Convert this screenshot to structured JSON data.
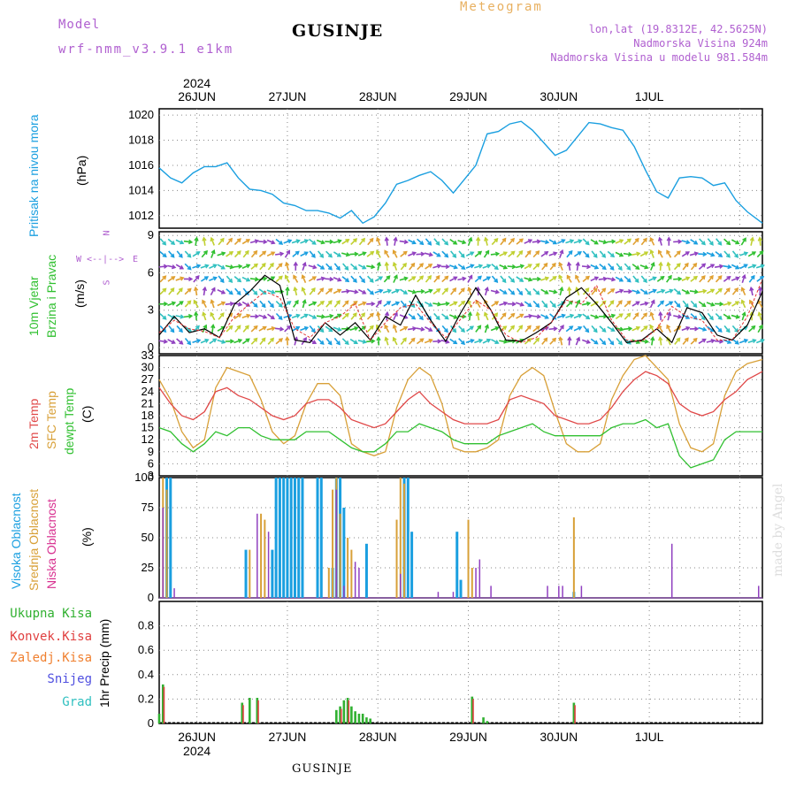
{
  "header": {
    "model_label": "Model",
    "model_name": "wrf-nmm_v3.9.1 e1km",
    "station": "GUSINJE",
    "meteogram": "Meteogram",
    "lonlat": "lon,lat (19.8312E, 42.5625N)",
    "altitude": "Nadmorska Visina 924m",
    "model_altitude": "Nadmorska Visina u modelu 981.584m",
    "watermark": "made by Angel",
    "footer_station": "GUSINJE"
  },
  "colors": {
    "pressure": "#1a9fe0",
    "temp2m": "#e04848",
    "sfc": "#d8a038",
    "dew": "#30c030",
    "high_cloud": "#1a9fe0",
    "mid_cloud": "#d8a038",
    "low_cloud": "#9040c0",
    "precip_total": "#30b030",
    "precip_conv": "#e04040",
    "header_purple": "#b060d0",
    "header_orange": "#e8b060"
  },
  "chart_data": [
    {
      "type": "line",
      "panel": "pressure",
      "ylabel_main": "Pritisak na nivou mora",
      "ylabel_unit": "(hPa)",
      "yticks": [
        "1012",
        "1014",
        "1016",
        "1018",
        "1020"
      ],
      "ylim": [
        1011,
        1020.5
      ],
      "x_hours": [
        0,
        3,
        6,
        9,
        12,
        15,
        18,
        21,
        24,
        27,
        30,
        33,
        36,
        39,
        42,
        45,
        48,
        51,
        54,
        57,
        60,
        63,
        66,
        69,
        72,
        75,
        78,
        81,
        84,
        87,
        90,
        93,
        96,
        99,
        102,
        105,
        108,
        111,
        114,
        117,
        120,
        123,
        126,
        129,
        132,
        135,
        138,
        141,
        144,
        147,
        150,
        153,
        156,
        160
      ],
      "series": [
        {
          "name": "Pritisak na nivou mora",
          "values": [
            1015.8,
            1015.0,
            1014.6,
            1015.4,
            1015.9,
            1015.9,
            1016.2,
            1015.0,
            1014.1,
            1014.0,
            1013.7,
            1013.0,
            1012.8,
            1012.4,
            1012.4,
            1012.2,
            1011.8,
            1012.4,
            1011.4,
            1011.9,
            1013.0,
            1014.5,
            1014.8,
            1015.2,
            1015.5,
            1014.8,
            1013.8,
            1014.9,
            1016.0,
            1018.5,
            1018.7,
            1019.3,
            1019.5,
            1018.8,
            1017.8,
            1016.8,
            1017.2,
            1018.3,
            1019.4,
            1019.3,
            1019.0,
            1018.8,
            1017.5,
            1015.6,
            1013.9,
            1013.4,
            1015.0,
            1015.1,
            1015.0,
            1014.4,
            1014.6,
            1013.2,
            1012.3,
            1011.4
          ]
        }
      ]
    },
    {
      "type": "line",
      "panel": "wind",
      "ylabel_main": "10m Vjetar",
      "ylabel_sub": "Brzina i Pravac",
      "ylabel_unit": "(m/s)",
      "compass": {
        "n": "N",
        "s": "S",
        "w": "W",
        "e": "E",
        "arrow": "<--|-->"
      },
      "yticks": [
        "0",
        "3",
        "6",
        "9"
      ],
      "ylim": [
        -0.5,
        9.3
      ],
      "x_hours": [
        0,
        4,
        8,
        12,
        16,
        20,
        24,
        28,
        32,
        36,
        40,
        44,
        48,
        52,
        56,
        60,
        64,
        68,
        72,
        76,
        80,
        84,
        88,
        92,
        96,
        100,
        104,
        108,
        112,
        116,
        120,
        124,
        128,
        132,
        136,
        140,
        144,
        148,
        152,
        156,
        160
      ],
      "series": [
        {
          "name": "speed",
          "values": [
            1.0,
            2.5,
            1.2,
            1.5,
            0.8,
            3.5,
            4.5,
            5.8,
            5.0,
            0.6,
            0.4,
            2.0,
            1.0,
            2.0,
            0.6,
            2.5,
            1.8,
            4.2,
            2.2,
            0.5,
            2.8,
            4.8,
            3.0,
            0.6,
            0.5,
            1.2,
            2.0,
            4.0,
            4.8,
            3.5,
            2.0,
            0.4,
            0.6,
            1.5,
            0.4,
            3.2,
            2.8,
            1.0,
            0.6,
            1.8,
            4.5
          ]
        },
        {
          "name": "gust",
          "values": [
            1.2,
            2.2,
            1.5,
            1.3,
            0.8,
            2.5,
            3.5,
            4.5,
            4.0,
            1.5,
            0.8,
            2.0,
            2.5,
            3.5,
            0.6,
            2.0,
            3.2,
            3.5,
            2.0,
            0.8,
            2.3,
            3.8,
            3.0,
            1.0,
            0.4,
            0.8,
            2.0,
            3.8,
            3.5,
            5.0,
            2.2,
            0.6,
            0.5,
            1.5,
            3.3,
            2.5,
            2.2,
            0.6,
            0.6,
            2.5,
            5.5
          ]
        }
      ]
    },
    {
      "type": "line",
      "panel": "temperature",
      "ylabel_main": "2m Temp",
      "ylabel_sub": "SFC Temp",
      "ylabel_sub2": "dewpt Temp",
      "ylabel_unit": "(C)",
      "yticks": [
        "3",
        "6",
        "9",
        "12",
        "15",
        "18",
        "21",
        "24",
        "27",
        "30",
        "33"
      ],
      "ylim": [
        3,
        33
      ],
      "x_hours": [
        0,
        3,
        6,
        9,
        12,
        15,
        18,
        21,
        24,
        27,
        30,
        33,
        36,
        39,
        42,
        45,
        48,
        51,
        54,
        57,
        60,
        63,
        66,
        69,
        72,
        75,
        78,
        81,
        84,
        87,
        90,
        93,
        96,
        99,
        102,
        105,
        108,
        111,
        114,
        117,
        120,
        123,
        126,
        129,
        132,
        135,
        138,
        141,
        144,
        147,
        150,
        153,
        156,
        160
      ],
      "series": [
        {
          "name": "2m Temp",
          "values": [
            25,
            21,
            18,
            17,
            19,
            24,
            25,
            23,
            22,
            20,
            18,
            17,
            18,
            21,
            22,
            22,
            20,
            17,
            16,
            15,
            16,
            19,
            22,
            24,
            21,
            19,
            17,
            16,
            16,
            16,
            17,
            22,
            23,
            22,
            21,
            18,
            17,
            16,
            16,
            17,
            20,
            24,
            27,
            29,
            28,
            26,
            21,
            19,
            18,
            19,
            22,
            24,
            27,
            29
          ]
        },
        {
          "name": "SFC Temp",
          "values": [
            27,
            22,
            14,
            10,
            12,
            25,
            30,
            29,
            28,
            22,
            14,
            11,
            13,
            21,
            26,
            26,
            23,
            11,
            9,
            8,
            9,
            20,
            27,
            30,
            28,
            21,
            10,
            9,
            9,
            10,
            12,
            23,
            28,
            30,
            28,
            19,
            11,
            9,
            9,
            11,
            22,
            28,
            32,
            33,
            30,
            27,
            16,
            10,
            9,
            11,
            23,
            29,
            31,
            32
          ]
        },
        {
          "name": "dewpt Temp",
          "values": [
            15,
            14,
            11,
            9,
            11,
            14,
            13,
            15,
            15,
            13,
            12,
            12,
            12,
            14,
            14,
            14,
            12,
            10,
            9,
            9,
            11,
            14,
            14,
            16,
            15,
            14,
            12,
            11,
            11,
            11,
            13,
            14,
            15,
            16,
            14,
            13,
            13,
            13,
            13,
            13,
            15,
            16,
            16,
            17,
            15,
            16,
            8,
            5,
            6,
            7,
            12,
            14,
            14,
            14
          ]
        }
      ]
    },
    {
      "type": "bar",
      "panel": "cloud",
      "ylabel_main": "Visoka Oblacnost",
      "ylabel_sub": "Srednja Oblacnost",
      "ylabel_sub2": "Niska Oblacnost",
      "ylabel_unit": "(%)",
      "yticks": [
        "0",
        "25",
        "50",
        "75",
        "100"
      ],
      "ylim": [
        0,
        100
      ],
      "series": [
        {
          "name": "Visoka Oblacnost",
          "points": [
            [
              2,
              100
            ],
            [
              3,
              100
            ],
            [
              23,
              40
            ],
            [
              30,
              40
            ],
            [
              31,
              100
            ],
            [
              32,
              100
            ],
            [
              33,
              100
            ],
            [
              34,
              100
            ],
            [
              35,
              100
            ],
            [
              36,
              100
            ],
            [
              37,
              100
            ],
            [
              38,
              100
            ],
            [
              42,
              100
            ],
            [
              43,
              100
            ],
            [
              46,
              25
            ],
            [
              47,
              100
            ],
            [
              48,
              100
            ],
            [
              49,
              75
            ],
            [
              55,
              45
            ],
            [
              65,
              100
            ],
            [
              66,
              100
            ],
            [
              67,
              55
            ],
            [
              79,
              55
            ],
            [
              80,
              15
            ],
            [
              110,
              5
            ]
          ]
        },
        {
          "name": "Srednja Oblacnost",
          "points": [
            [
              1,
              100
            ],
            [
              2,
              90
            ],
            [
              24,
              40
            ],
            [
              27,
              70
            ],
            [
              28,
              65
            ],
            [
              45,
              25
            ],
            [
              46,
              90
            ],
            [
              47,
              100
            ],
            [
              48,
              70
            ],
            [
              50,
              50
            ],
            [
              51,
              40
            ],
            [
              63,
              65
            ],
            [
              64,
              100
            ],
            [
              65,
              95
            ],
            [
              82,
              65
            ],
            [
              83,
              25
            ],
            [
              110,
              67
            ]
          ]
        },
        {
          "name": "Niska Oblacnost",
          "points": [
            [
              1,
              75
            ],
            [
              4,
              8
            ],
            [
              26,
              70
            ],
            [
              29,
              55
            ],
            [
              47,
              90
            ],
            [
              49,
              10
            ],
            [
              52,
              30
            ],
            [
              53,
              25
            ],
            [
              64,
              20
            ],
            [
              74,
              5
            ],
            [
              78,
              5
            ],
            [
              84,
              25
            ],
            [
              85,
              32
            ],
            [
              88,
              10
            ],
            [
              103,
              10
            ],
            [
              106,
              10
            ],
            [
              107,
              10
            ],
            [
              112,
              10
            ],
            [
              136,
              45
            ],
            [
              159,
              10
            ]
          ]
        }
      ]
    },
    {
      "type": "bar",
      "panel": "precip",
      "legend": [
        "Ukupna Kisa",
        "Konvek.Kisa",
        "Zaledj.Kisa",
        "Snijeg",
        "Grad"
      ],
      "ylabel_unit": "1hr Precip (mm)",
      "yticks": [
        "0",
        "0.2",
        "0.4",
        "0.6",
        "0.8"
      ],
      "ylim": [
        0,
        1.0
      ],
      "series": [
        {
          "name": "Ukupna Kisa",
          "points": [
            [
              0,
              0.08
            ],
            [
              1,
              0.32
            ],
            [
              22,
              0.17
            ],
            [
              24,
              0.21
            ],
            [
              26,
              0.21
            ],
            [
              47,
              0.11
            ],
            [
              48,
              0.14
            ],
            [
              49,
              0.19
            ],
            [
              50,
              0.21
            ],
            [
              51,
              0.14
            ],
            [
              52,
              0.1
            ],
            [
              53,
              0.08
            ],
            [
              54,
              0.08
            ],
            [
              55,
              0.05
            ],
            [
              56,
              0.04
            ],
            [
              83,
              0.22
            ],
            [
              86,
              0.05
            ],
            [
              87,
              0.02
            ],
            [
              110,
              0.17
            ]
          ]
        },
        {
          "name": "Konvek.Kisa",
          "points": [
            [
              1,
              0.3
            ],
            [
              22,
              0.15
            ],
            [
              26,
              0.19
            ],
            [
              48,
              0.12
            ],
            [
              50,
              0.19
            ],
            [
              83,
              0.2
            ],
            [
              110,
              0.15
            ]
          ]
        }
      ]
    }
  ],
  "axes": {
    "day_labels": [
      "26JUN",
      "27JUN",
      "28JUN",
      "29JUN",
      "30JUN",
      "1JUL"
    ],
    "year_label": "2024",
    "hours_first_day_line": 10,
    "hours_per_day": 24,
    "hours_span": 160
  }
}
